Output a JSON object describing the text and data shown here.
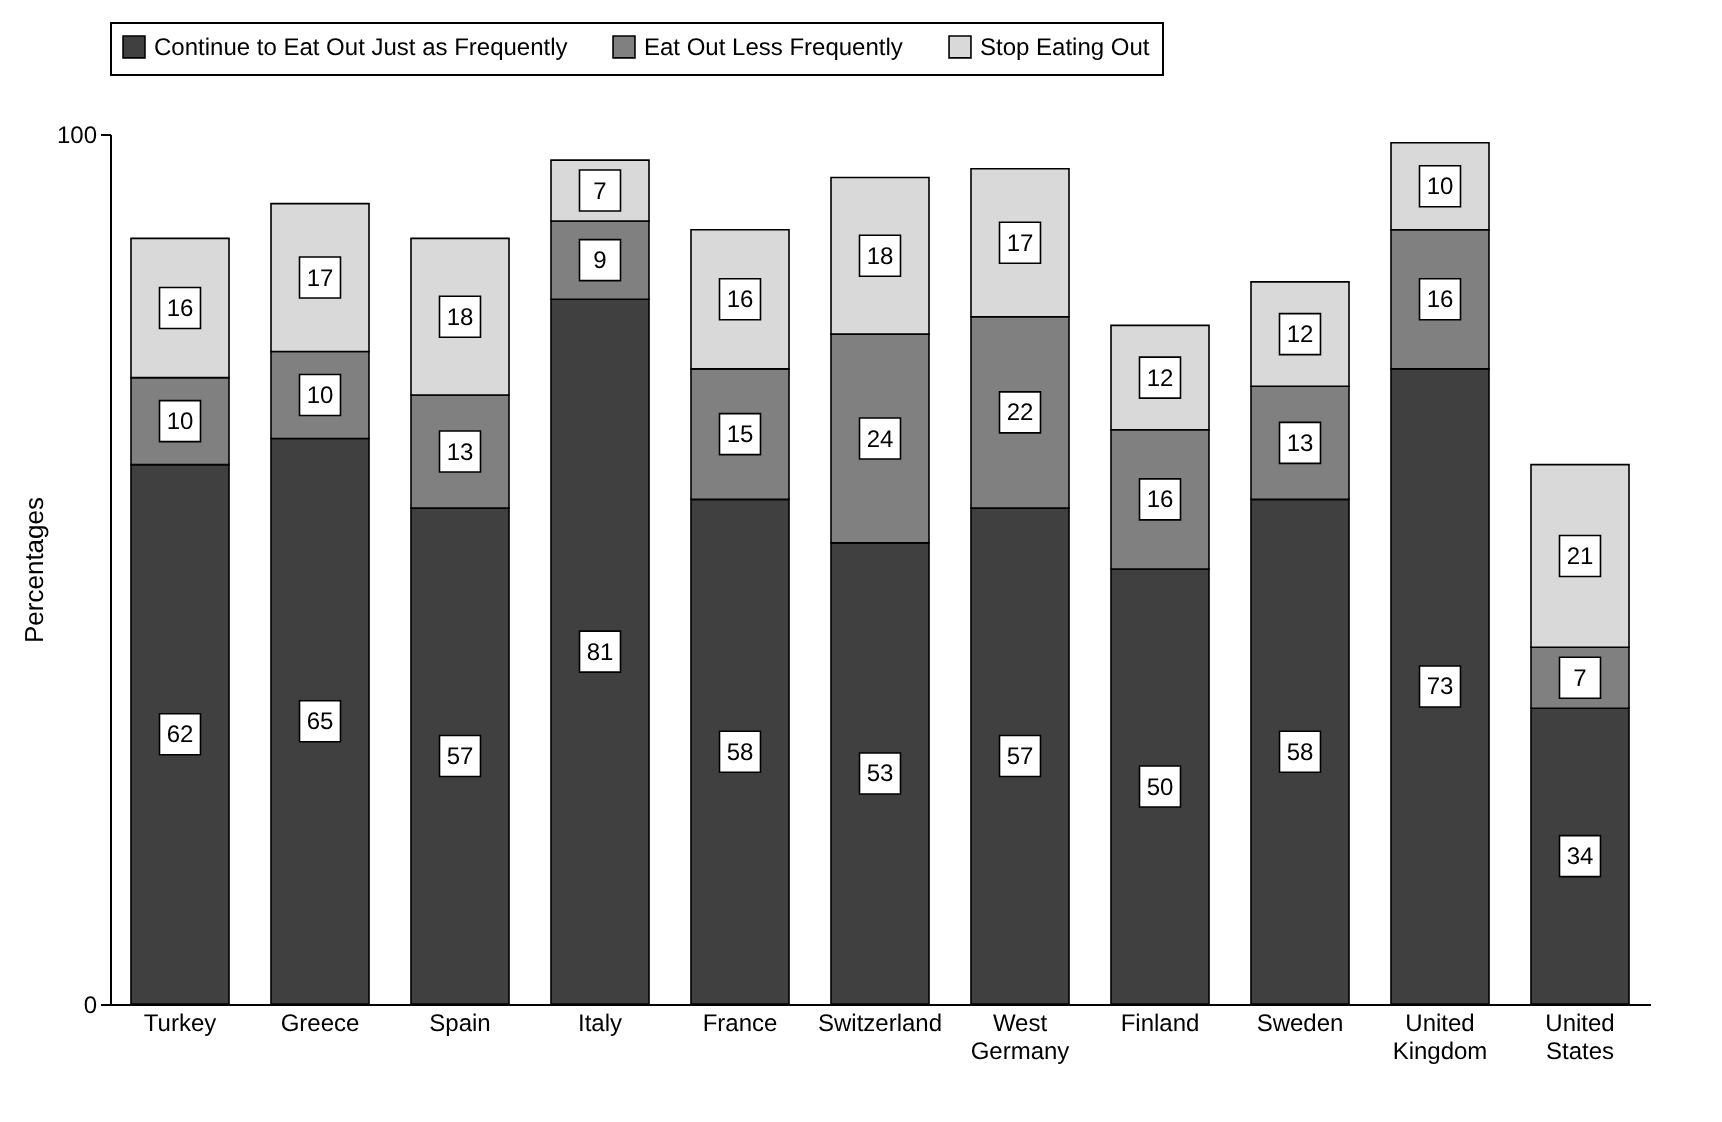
{
  "chart_data": {
    "type": "bar",
    "stacked": true,
    "ylabel": "Percentages",
    "ylim": [
      0,
      100
    ],
    "yticks": [
      0,
      100
    ],
    "grid": false,
    "legend": "top",
    "data_labels": true,
    "categories": [
      "Turkey",
      "Greece",
      "Spain",
      "Italy",
      "France",
      "Switzerland",
      "West Germany",
      "Finland",
      "Sweden",
      "United Kingdom",
      "United States"
    ],
    "series": [
      {
        "name": "Continue to Eat Out Just as Frequently",
        "color": "#404040",
        "values": [
          62,
          65,
          57,
          81,
          58,
          53,
          57,
          50,
          58,
          73,
          34
        ]
      },
      {
        "name": "Eat Out Less Frequently",
        "color": "#808080",
        "values": [
          10,
          10,
          13,
          9,
          15,
          24,
          22,
          16,
          13,
          16,
          7
        ]
      },
      {
        "name": "Stop Eating Out",
        "color": "#d9d9d9",
        "values": [
          16,
          17,
          18,
          7,
          16,
          18,
          17,
          12,
          12,
          10,
          21
        ]
      }
    ]
  }
}
